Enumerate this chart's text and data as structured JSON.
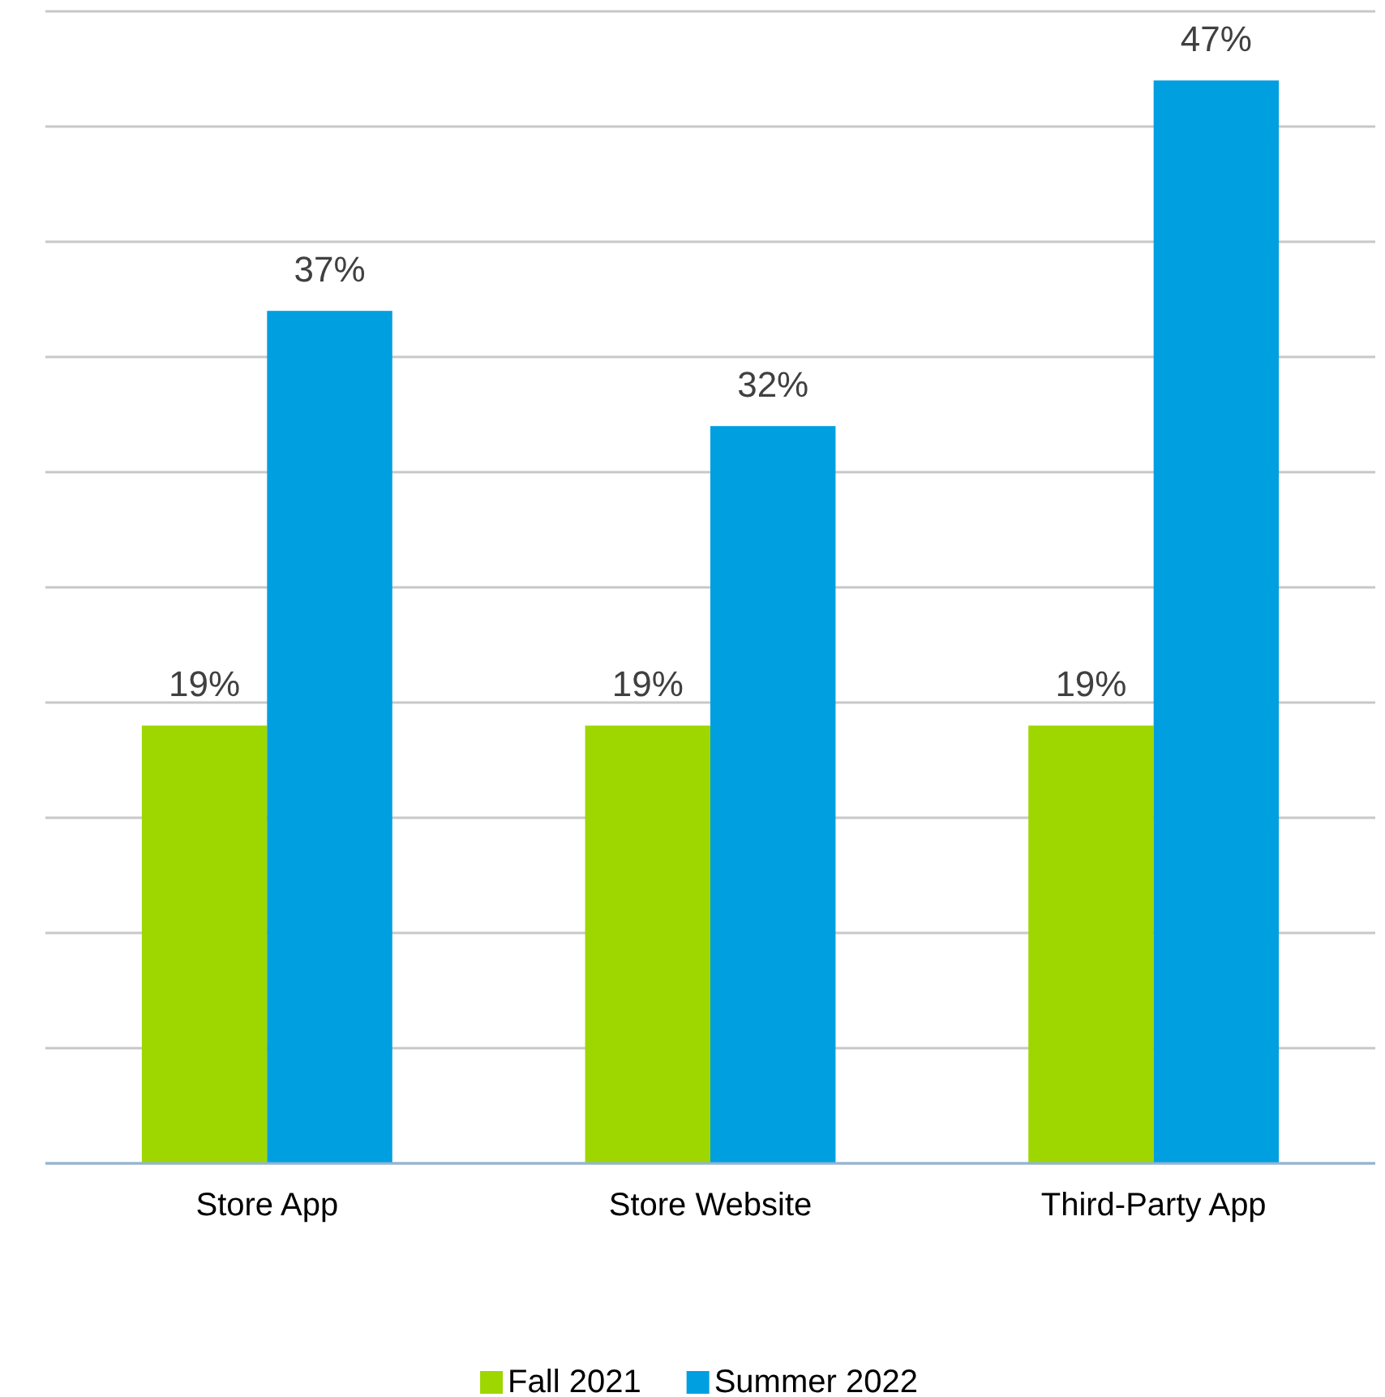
{
  "chart_data": {
    "type": "bar",
    "categories": [
      "Store App",
      "Store Website",
      "Third-Party App"
    ],
    "series": [
      {
        "name": "Fall 2021",
        "color": "#9ed600",
        "values": [
          19,
          19,
          19
        ],
        "value_labels": [
          "19%",
          "19%",
          "19%"
        ]
      },
      {
        "name": "Summer 2022",
        "color": "#009fe0",
        "values": [
          37,
          32,
          47
        ],
        "value_labels": [
          "37%",
          "32%",
          "47%"
        ]
      }
    ],
    "ylim": [
      0,
      50
    ],
    "yticks": [
      {
        "value": 0,
        "label": null
      },
      {
        "value": 5,
        "label": null
      },
      {
        "value": 10,
        "label": null
      },
      {
        "value": 15,
        "label": null
      },
      {
        "value": 20,
        "label": null
      },
      {
        "value": 25,
        "label": null
      },
      {
        "value": 30,
        "label": null
      },
      {
        "value": 35,
        "label": null
      },
      {
        "value": 40,
        "label": null
      },
      {
        "value": 45,
        "label": null
      },
      {
        "value": 50,
        "label": null
      }
    ],
    "grid": "y",
    "tick_labels": "x",
    "legend": "bottom"
  }
}
